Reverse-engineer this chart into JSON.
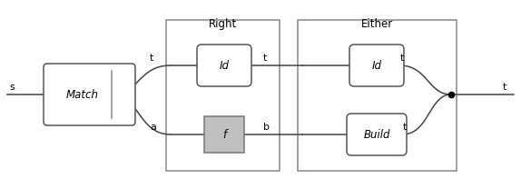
{
  "bg_color": "#ffffff",
  "box_edge_color": "#555555",
  "line_color": "#444444",
  "text_color": "#000000",
  "match_label": "Match",
  "id_top_label": "Id",
  "id_bottom_label": "Id",
  "f_label": "f",
  "build_label": "Build",
  "right_title": "Right",
  "either_title": "Either",
  "s_label": "s",
  "t_top_label": "t",
  "a_bot_label": "a",
  "t_right_top_label": "t",
  "b_right_bot_label": "b",
  "t_either_top_label": "t",
  "t_either_bot_label": "t",
  "t_out_label": "t",
  "figsize": [
    5.74,
    2.08
  ],
  "dpi": 100
}
